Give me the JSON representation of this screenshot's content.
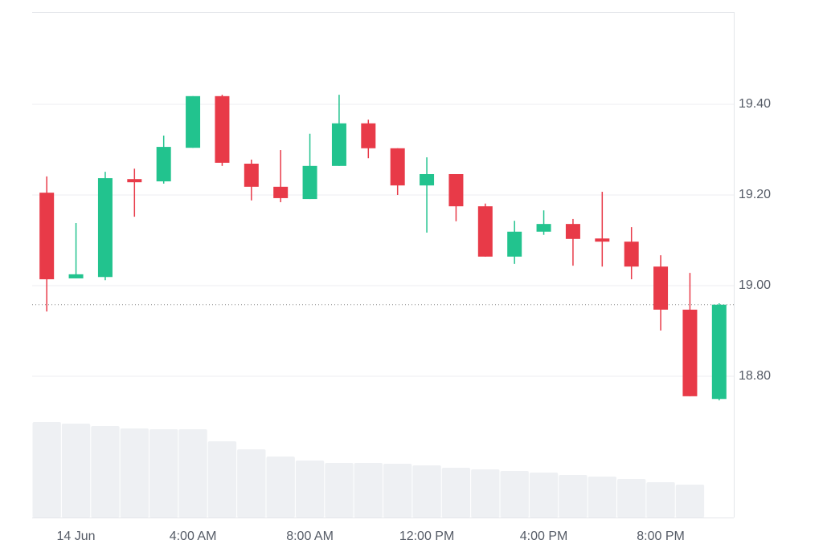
{
  "chart_data": {
    "type": "candlestick",
    "categories": [
      null,
      "14 Jun",
      null,
      null,
      null,
      "4:00 AM",
      null,
      null,
      null,
      "8:00 AM",
      null,
      null,
      null,
      "12:00 PM",
      null,
      null,
      null,
      "4:00 PM",
      null,
      null,
      null,
      "8:00 PM",
      null,
      null
    ],
    "open": [
      19.205,
      19.016,
      19.019,
      19.235,
      19.23,
      19.304,
      19.418,
      19.269,
      19.218,
      19.191,
      19.264,
      19.358,
      19.303,
      19.221,
      19.246,
      19.175,
      19.064,
      19.119,
      19.136,
      19.104,
      19.097,
      19.042,
      18.947,
      18.75
    ],
    "high": [
      19.241,
      19.138,
      19.251,
      19.258,
      19.331,
      19.418,
      19.421,
      19.278,
      19.299,
      19.335,
      19.421,
      19.366,
      19.303,
      19.283,
      19.246,
      19.181,
      19.143,
      19.166,
      19.147,
      19.207,
      19.129,
      19.067,
      19.028,
      18.961
    ],
    "low": [
      18.943,
      19.016,
      19.012,
      19.152,
      19.225,
      19.304,
      19.264,
      19.188,
      19.184,
      19.191,
      19.264,
      19.281,
      19.2,
      19.117,
      19.142,
      19.064,
      19.048,
      19.112,
      19.044,
      19.042,
      19.014,
      18.901,
      18.756,
      18.747
    ],
    "close": [
      19.014,
      19.025,
      19.237,
      19.228,
      19.306,
      19.418,
      19.271,
      19.218,
      19.193,
      19.264,
      19.358,
      19.303,
      19.221,
      19.246,
      19.175,
      19.064,
      19.119,
      19.136,
      19.103,
      19.097,
      19.042,
      18.947,
      18.756,
      18.958
    ],
    "volume": [
      119,
      117,
      114,
      111,
      110,
      110,
      95,
      85,
      76,
      71,
      68,
      68,
      67,
      65,
      62,
      60,
      58,
      56,
      53,
      51,
      48,
      44,
      41,
      null
    ],
    "volume_ylim": [
      0,
      630
    ],
    "last_price": 18.958,
    "up_color": "#22c38e",
    "down_color": "#e83a48",
    "volume_color": "#eef0f3",
    "ylim": [
      18.4885,
      19.6035
    ],
    "yticks": [
      {
        "value": 18.8,
        "label": "18.80"
      },
      {
        "value": 19.0,
        "label": "19.00"
      },
      {
        "value": 19.2,
        "label": "19.20"
      },
      {
        "value": 19.4,
        "label": "19.40"
      }
    ],
    "grid": true
  }
}
